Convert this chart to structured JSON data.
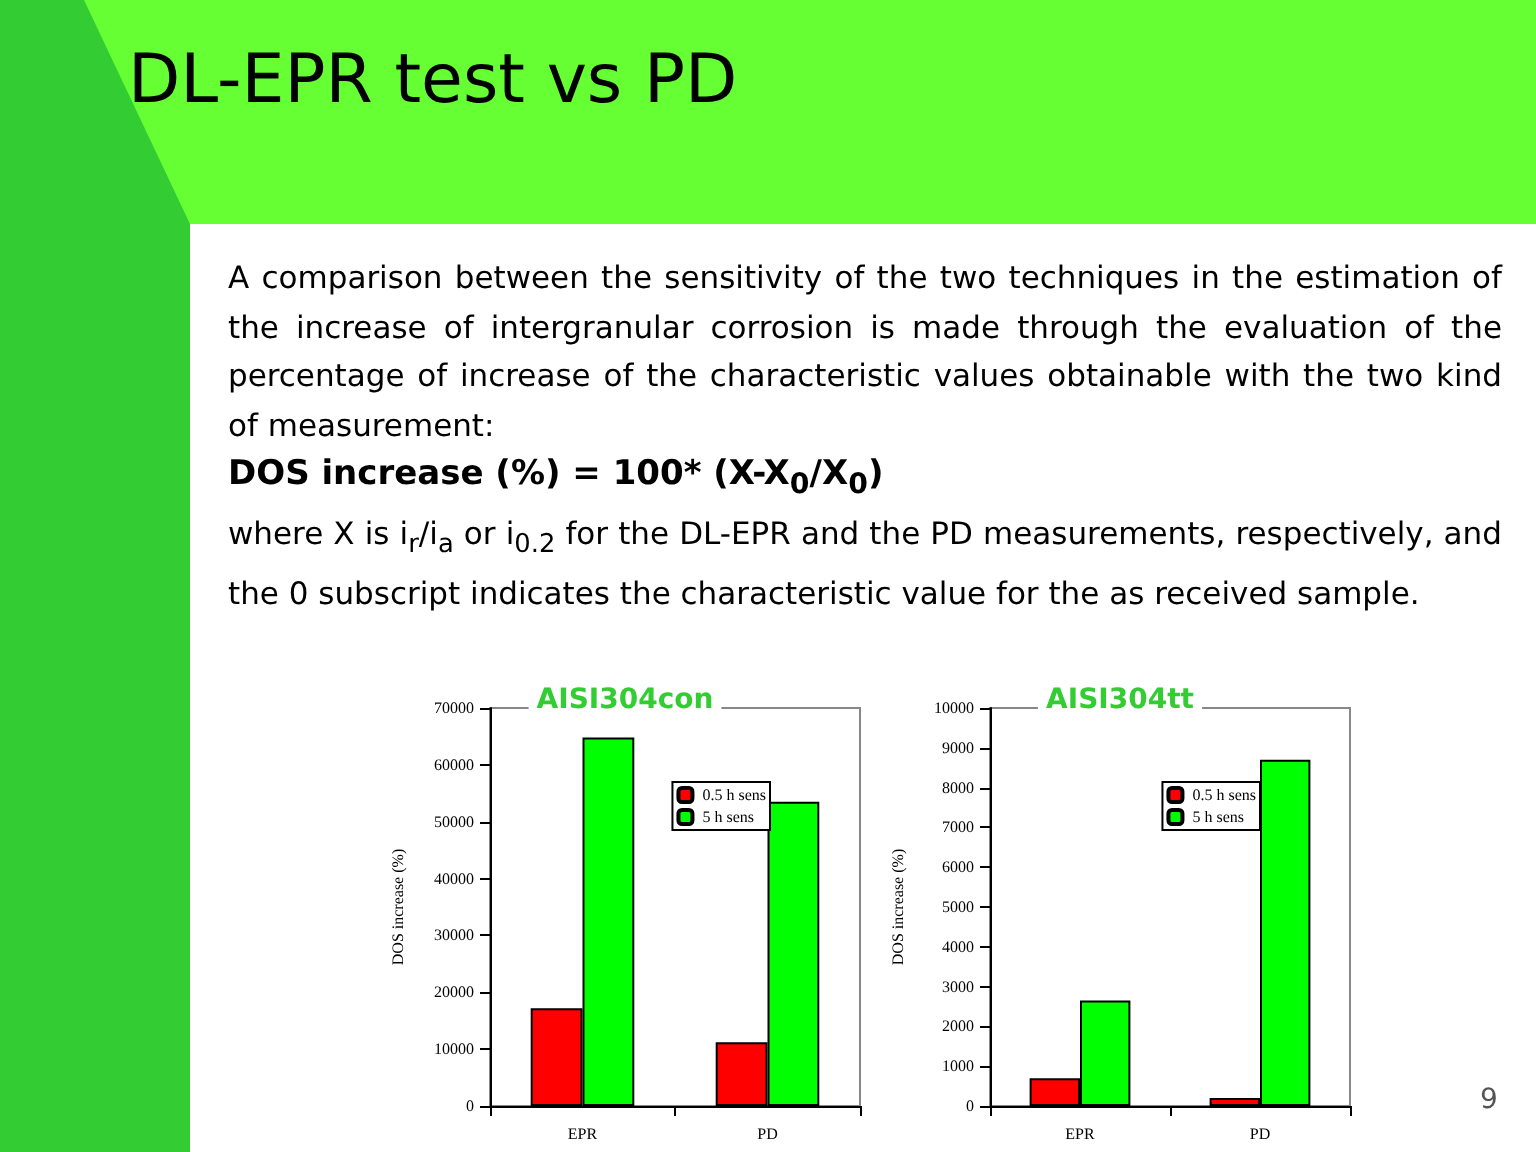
{
  "chart_data": [
    {
      "type": "bar",
      "title": "AISI304con",
      "ylabel": "DOS increase (%)",
      "categories": [
        "EPR",
        "PD"
      ],
      "series": [
        {
          "name": "0.5 h sens",
          "color": "#ff0000",
          "values": [
            17200,
            11200
          ]
        },
        {
          "name": "5 h sens",
          "color": "#00ff00",
          "values": [
            64800,
            53500
          ]
        }
      ],
      "ylim": [
        0,
        70000
      ],
      "yticks": [
        0,
        10000,
        20000,
        30000,
        40000,
        50000,
        60000,
        70000
      ],
      "legend": "top right",
      "annotations": [
        "DL-EPR test vs PD",
        "A comparison between the sensitivity of the two techniques in the estimation of the increase of intergranular corrosion is made through the evaluation of the percentage of increase of the characteristic values obtainable with the two kind of measurement:",
        "DOS increase (%) = 100* (X-X$_{0}$/X$_{0}$)",
        "where X is i$_{r}$/i$_{a}$ or i$_{0.2}$ for the DL-EPR and the PD measurements, respectively, and the 0 subscript indicates the characteristic value for the as received sample."
      ]
    },
    {
      "type": "bar",
      "title": "AISI304tt",
      "ylabel": "DOS increase (%)",
      "categories": [
        "EPR",
        "PD"
      ],
      "series": [
        {
          "name": "0.5 h sens",
          "color": "#ff0000",
          "values": [
            700,
            200
          ]
        },
        {
          "name": "5 h sens",
          "color": "#00ff00",
          "values": [
            2650,
            8700
          ]
        }
      ],
      "ylim": [
        0,
        10000
      ],
      "yticks": [
        0,
        1000,
        2000,
        3000,
        4000,
        5000,
        6000,
        7000,
        8000,
        9000,
        10000
      ],
      "legend": "top right",
      "annotations": [
        "9"
      ]
    }
  ]
}
